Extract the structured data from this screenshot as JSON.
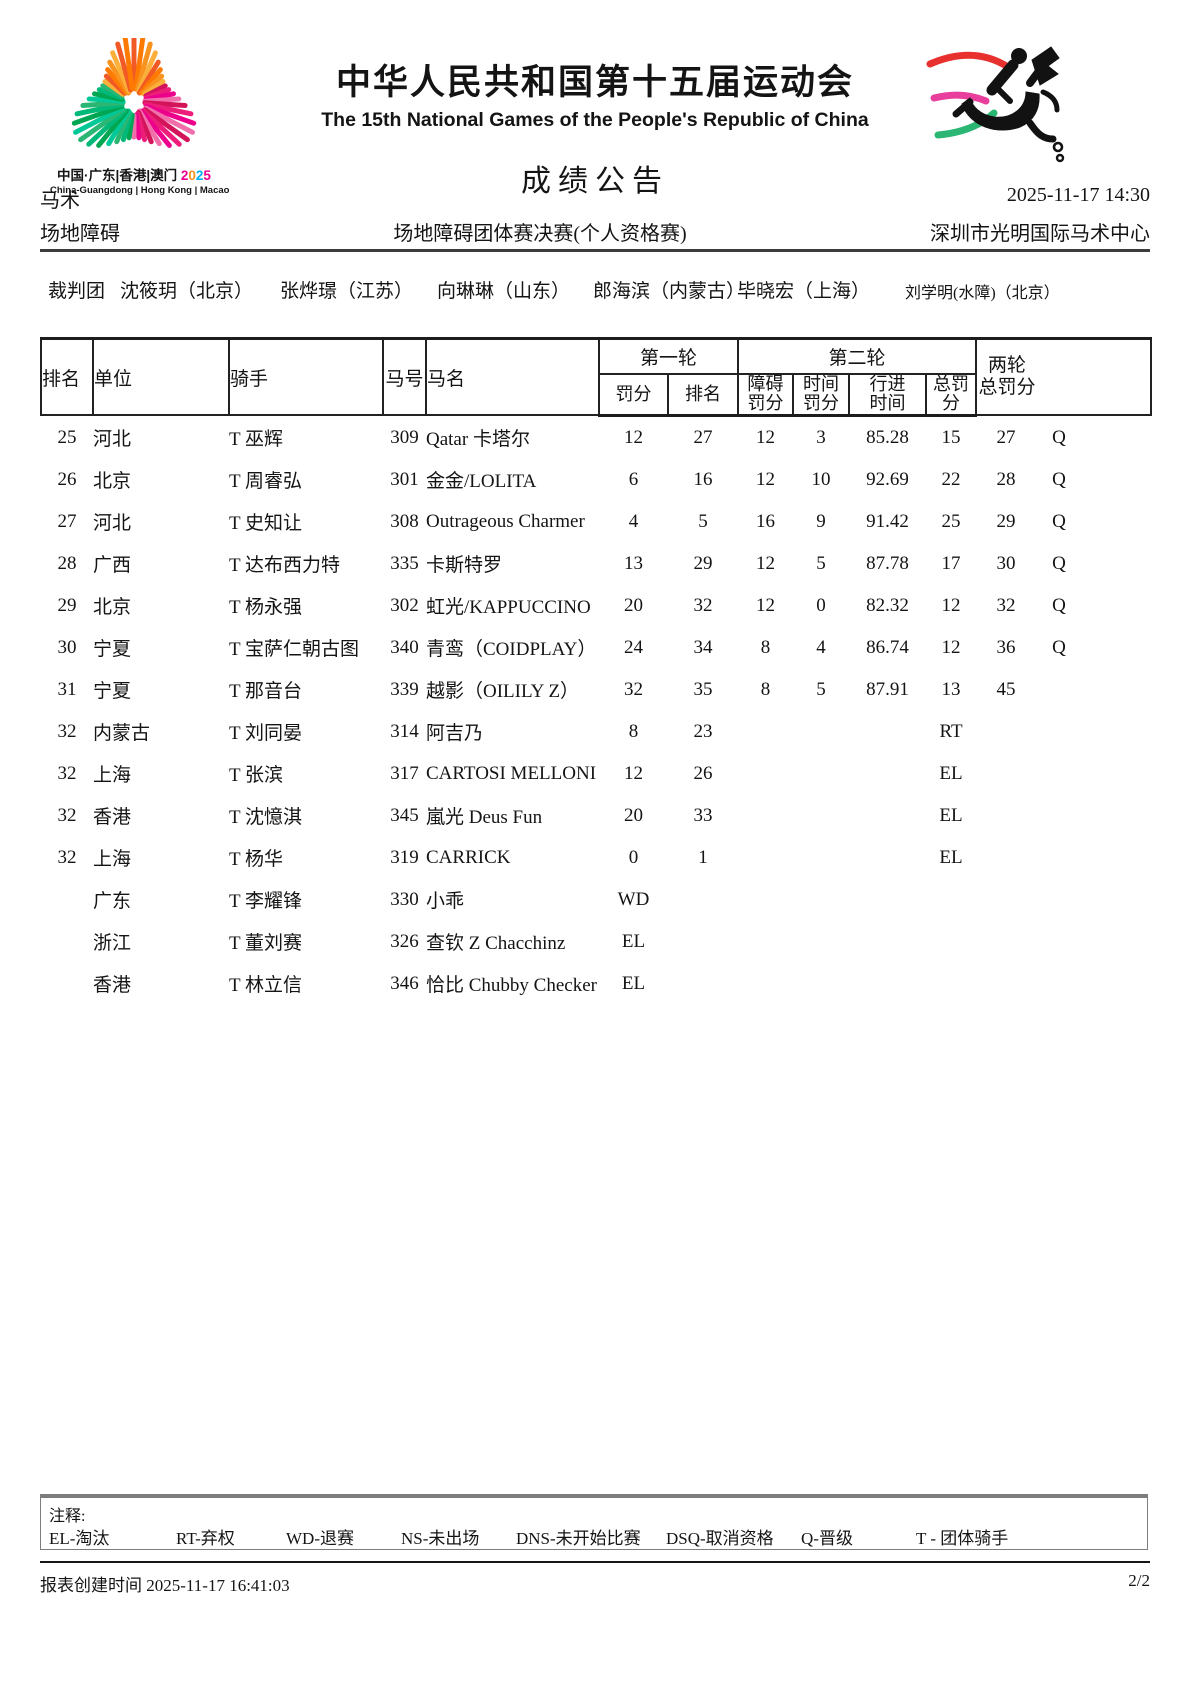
{
  "logo": {
    "caption_cn": "中国·广东|香港|澳门",
    "caption_year": "2025",
    "caption_en": "China-Guangdong | Hong Kong | Macao",
    "colors": {
      "orange": [
        "#F15A24",
        "#FF7A00",
        "#F7931E",
        "#FBB03B"
      ],
      "magenta": [
        "#D4145A",
        "#ED1E79",
        "#EC008C",
        "#F06EAA"
      ],
      "green": [
        "#00A651",
        "#00B878",
        "#2BB673",
        "#00C896"
      ]
    },
    "year_colors": [
      "#EC008C",
      "#F7931E",
      "#00AEEF",
      "#EC008C"
    ]
  },
  "pictogram": {
    "streak_colors": [
      "#E8312F",
      "#E83E9C",
      "#2BB673"
    ],
    "ink": "#121212"
  },
  "header": {
    "title_cn": "中华人民共和国第十五届运动会",
    "title_en": "The 15th National Games of the People's Republic of China",
    "doc_title": "成绩公告",
    "sport": "马术",
    "datetime": "2025-11-17 14:30",
    "discipline": "场地障碍",
    "event": "场地障碍团体赛决赛(个人资格赛)",
    "venue": "深圳市光明国际马术中心"
  },
  "judges": {
    "label": "裁判团",
    "members": [
      "沈筱玥（北京）",
      "张烨璟（江苏）",
      "向琳琳（山东）",
      "郎海滨（内蒙古）",
      "毕晓宏（上海）",
      "刘学明(水障)（北京）"
    ]
  },
  "table": {
    "headers": {
      "rank": "排名",
      "unit": "单位",
      "rider": "骑手",
      "horse_no": "马号",
      "horse_name": "马名",
      "round1": "第一轮",
      "round2": "第二轮",
      "r1_penalty": "罚分",
      "r1_rank": "排名",
      "r2_obstacle": [
        "障碍",
        "罚分"
      ],
      "r2_time": [
        "时间",
        "罚分"
      ],
      "r2_travel": [
        "行进",
        "时间"
      ],
      "r2_total": "总罚分",
      "total": [
        "两轮",
        "总罚分"
      ]
    },
    "rows": [
      {
        "rank": "25",
        "unit": "河北",
        "rider": "T 巫辉",
        "no": "309",
        "horse": "Qatar 卡塔尔",
        "r1p": "12",
        "r1r": "27",
        "r2o": "12",
        "r2t": "3",
        "r2pt": "85.28",
        "r2tot": "15",
        "tot": "27",
        "q": "Q"
      },
      {
        "rank": "26",
        "unit": "北京",
        "rider": "T 周睿弘",
        "no": "301",
        "horse": "金金/LOLITA",
        "r1p": "6",
        "r1r": "16",
        "r2o": "12",
        "r2t": "10",
        "r2pt": "92.69",
        "r2tot": "22",
        "tot": "28",
        "q": "Q"
      },
      {
        "rank": "27",
        "unit": "河北",
        "rider": "T 史知让",
        "no": "308",
        "horse": "Outrageous Charmer",
        "r1p": "4",
        "r1r": "5",
        "r2o": "16",
        "r2t": "9",
        "r2pt": "91.42",
        "r2tot": "25",
        "tot": "29",
        "q": "Q"
      },
      {
        "rank": "28",
        "unit": "广西",
        "rider": "T 达布西力特",
        "no": "335",
        "horse": "卡斯特罗",
        "r1p": "13",
        "r1r": "29",
        "r2o": "12",
        "r2t": "5",
        "r2pt": "87.78",
        "r2tot": "17",
        "tot": "30",
        "q": "Q"
      },
      {
        "rank": "29",
        "unit": "北京",
        "rider": "T 杨永强",
        "no": "302",
        "horse": "虹光/KAPPUCCINO",
        "r1p": "20",
        "r1r": "32",
        "r2o": "12",
        "r2t": "0",
        "r2pt": "82.32",
        "r2tot": "12",
        "tot": "32",
        "q": "Q"
      },
      {
        "rank": "30",
        "unit": "宁夏",
        "rider": "T 宝萨仁朝古图",
        "no": "340",
        "horse": "青鸾（COIDPLAY）",
        "r1p": "24",
        "r1r": "34",
        "r2o": "8",
        "r2t": "4",
        "r2pt": "86.74",
        "r2tot": "12",
        "tot": "36",
        "q": "Q"
      },
      {
        "rank": "31",
        "unit": "宁夏",
        "rider": "T 那音台",
        "no": "339",
        "horse": "越影（OILILY Z）",
        "r1p": "32",
        "r1r": "35",
        "r2o": "8",
        "r2t": "5",
        "r2pt": "87.91",
        "r2tot": "13",
        "tot": "45",
        "q": ""
      },
      {
        "rank": "32",
        "unit": "内蒙古",
        "rider": "T 刘同晏",
        "no": "314",
        "horse": "阿吉乃",
        "r1p": "8",
        "r1r": "23",
        "r2o": "",
        "r2t": "",
        "r2pt": "",
        "r2tot": "RT",
        "tot": "",
        "q": ""
      },
      {
        "rank": "32",
        "unit": "上海",
        "rider": "T 张滨",
        "no": "317",
        "horse": "CARTOSI MELLONI",
        "r1p": "12",
        "r1r": "26",
        "r2o": "",
        "r2t": "",
        "r2pt": "",
        "r2tot": "EL",
        "tot": "",
        "q": ""
      },
      {
        "rank": "32",
        "unit": "香港",
        "rider": "T 沈憶淇",
        "no": "345",
        "horse": "嵐光 Deus Fun",
        "r1p": "20",
        "r1r": "33",
        "r2o": "",
        "r2t": "",
        "r2pt": "",
        "r2tot": "EL",
        "tot": "",
        "q": ""
      },
      {
        "rank": "32",
        "unit": "上海",
        "rider": "T 杨华",
        "no": "319",
        "horse": "CARRICK",
        "r1p": "0",
        "r1r": "1",
        "r2o": "",
        "r2t": "",
        "r2pt": "",
        "r2tot": "EL",
        "tot": "",
        "q": ""
      },
      {
        "rank": "",
        "unit": "广东",
        "rider": "T 李耀锋",
        "no": "330",
        "horse": "小乖",
        "r1p": "WD",
        "r1r": "",
        "r2o": "",
        "r2t": "",
        "r2pt": "",
        "r2tot": "",
        "tot": "",
        "q": ""
      },
      {
        "rank": "",
        "unit": "浙江",
        "rider": "T 董刘赛",
        "no": "326",
        "horse": "查钦 Z Chacchinz",
        "r1p": "EL",
        "r1r": "",
        "r2o": "",
        "r2t": "",
        "r2pt": "",
        "r2tot": "",
        "tot": "",
        "q": ""
      },
      {
        "rank": "",
        "unit": "香港",
        "rider": "T 林立信",
        "no": "346",
        "horse": "恰比 Chubby Checker",
        "r1p": "EL",
        "r1r": "",
        "r2o": "",
        "r2t": "",
        "r2pt": "",
        "r2tot": "",
        "tot": "",
        "q": ""
      }
    ]
  },
  "notes": {
    "label": "注释:",
    "legend": [
      "EL-淘汰",
      "RT-弃权",
      "WD-退赛",
      "NS-未出场",
      "DNS-未开始比赛",
      "DSQ-取消资格",
      "Q-晋级",
      "T - 团体骑手"
    ]
  },
  "footer": {
    "created_label": "报表创建时间",
    "created_time": "2025-11-17 16:41:03",
    "page": "2/2"
  }
}
